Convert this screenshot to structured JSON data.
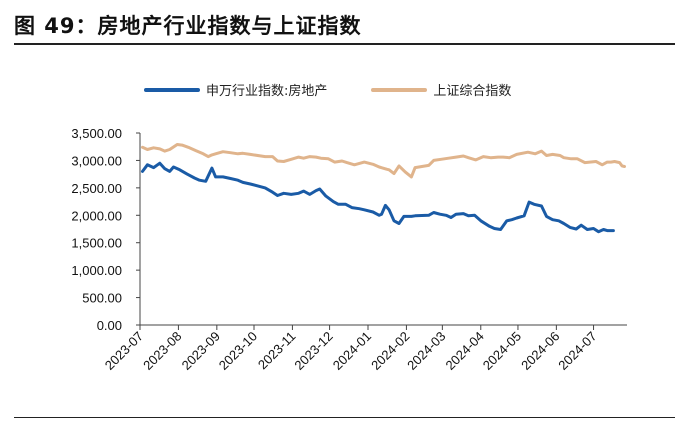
{
  "figure": {
    "title": "图 49：房地产行业指数与上证指数"
  },
  "colors": {
    "series1": "#1a5ba6",
    "series2": "#e0b48c",
    "axis": "#444444"
  },
  "chart_data": {
    "type": "line",
    "title": "",
    "xlabel": "",
    "ylabel": "",
    "ylim": [
      0,
      3500
    ],
    "y_ticks": [
      "3,500.00",
      "3,000.00",
      "2,500.00",
      "2,000.00",
      "1,500.00",
      "1,000.00",
      "500.00",
      "0.00"
    ],
    "x_ticks": [
      "2023-07",
      "2023-08",
      "2023-09",
      "2023-10",
      "2023-11",
      "2023-12",
      "2024-01",
      "2024-02",
      "2024-03",
      "2024-04",
      "2024-05",
      "2024-06",
      "2024-07"
    ],
    "legend_position": "top",
    "grid": false,
    "series": [
      {
        "name": "申万行业指数:房地产",
        "points": [
          [
            "2023-07-03",
            2800
          ],
          [
            "2023-07-07",
            2920
          ],
          [
            "2023-07-12",
            2870
          ],
          [
            "2023-07-17",
            2950
          ],
          [
            "2023-07-21",
            2850
          ],
          [
            "2023-07-25",
            2800
          ],
          [
            "2023-07-28",
            2880
          ],
          [
            "2023-08-02",
            2830
          ],
          [
            "2023-08-08",
            2750
          ],
          [
            "2023-08-14",
            2680
          ],
          [
            "2023-08-18",
            2640
          ],
          [
            "2023-08-23",
            2620
          ],
          [
            "2023-08-28",
            2860
          ],
          [
            "2023-08-31",
            2700
          ],
          [
            "2023-09-06",
            2700
          ],
          [
            "2023-09-12",
            2670
          ],
          [
            "2023-09-18",
            2640
          ],
          [
            "2023-09-22",
            2600
          ],
          [
            "2023-09-28",
            2570
          ],
          [
            "2023-10-10",
            2500
          ],
          [
            "2023-10-16",
            2420
          ],
          [
            "2023-10-20",
            2360
          ],
          [
            "2023-10-25",
            2400
          ],
          [
            "2023-10-31",
            2380
          ],
          [
            "2023-11-06",
            2400
          ],
          [
            "2023-11-10",
            2440
          ],
          [
            "2023-11-15",
            2380
          ],
          [
            "2023-11-20",
            2450
          ],
          [
            "2023-11-23",
            2480
          ],
          [
            "2023-11-28",
            2350
          ],
          [
            "2023-12-04",
            2250
          ],
          [
            "2023-12-08",
            2200
          ],
          [
            "2023-12-14",
            2200
          ],
          [
            "2023-12-19",
            2140
          ],
          [
            "2023-12-25",
            2120
          ],
          [
            "2023-12-29",
            2100
          ],
          [
            "2024-01-05",
            2060
          ],
          [
            "2024-01-10",
            2000
          ],
          [
            "2024-01-12",
            2020
          ],
          [
            "2024-01-15",
            2180
          ],
          [
            "2024-01-18",
            2100
          ],
          [
            "2024-01-22",
            1900
          ],
          [
            "2024-01-26",
            1850
          ],
          [
            "2024-01-30",
            1980
          ],
          [
            "2024-02-05",
            1980
          ],
          [
            "2024-02-08",
            1990
          ],
          [
            "2024-02-19",
            2000
          ],
          [
            "2024-02-23",
            2050
          ],
          [
            "2024-02-28",
            2020
          ],
          [
            "2024-03-04",
            2000
          ],
          [
            "2024-03-08",
            1960
          ],
          [
            "2024-03-12",
            2020
          ],
          [
            "2024-03-18",
            2030
          ],
          [
            "2024-03-22",
            1990
          ],
          [
            "2024-03-27",
            2000
          ],
          [
            "2024-04-01",
            1900
          ],
          [
            "2024-04-08",
            1800
          ],
          [
            "2024-04-12",
            1760
          ],
          [
            "2024-04-17",
            1740
          ],
          [
            "2024-04-22",
            1900
          ],
          [
            "2024-04-26",
            1920
          ],
          [
            "2024-04-30",
            1950
          ],
          [
            "2024-05-06",
            1990
          ],
          [
            "2024-05-10",
            2240
          ],
          [
            "2024-05-14",
            2200
          ],
          [
            "2024-05-20",
            2170
          ],
          [
            "2024-05-24",
            1980
          ],
          [
            "2024-05-29",
            1920
          ],
          [
            "2024-06-03",
            1900
          ],
          [
            "2024-06-07",
            1850
          ],
          [
            "2024-06-12",
            1780
          ],
          [
            "2024-06-17",
            1750
          ],
          [
            "2024-06-21",
            1820
          ],
          [
            "2024-06-26",
            1740
          ],
          [
            "2024-07-01",
            1760
          ],
          [
            "2024-07-05",
            1700
          ],
          [
            "2024-07-09",
            1740
          ],
          [
            "2024-07-12",
            1720
          ],
          [
            "2024-07-17",
            1720
          ]
        ]
      },
      {
        "name": "上证综合指数",
        "points": [
          [
            "2023-07-03",
            3240
          ],
          [
            "2023-07-07",
            3200
          ],
          [
            "2023-07-12",
            3230
          ],
          [
            "2023-07-17",
            3210
          ],
          [
            "2023-07-21",
            3170
          ],
          [
            "2023-07-25",
            3200
          ],
          [
            "2023-07-31",
            3290
          ],
          [
            "2023-08-04",
            3280
          ],
          [
            "2023-08-09",
            3240
          ],
          [
            "2023-08-15",
            3180
          ],
          [
            "2023-08-21",
            3120
          ],
          [
            "2023-08-25",
            3070
          ],
          [
            "2023-08-28",
            3100
          ],
          [
            "2023-08-31",
            3120
          ],
          [
            "2023-09-06",
            3160
          ],
          [
            "2023-09-12",
            3140
          ],
          [
            "2023-09-18",
            3120
          ],
          [
            "2023-09-22",
            3130
          ],
          [
            "2023-09-28",
            3110
          ],
          [
            "2023-10-10",
            3070
          ],
          [
            "2023-10-16",
            3070
          ],
          [
            "2023-10-20",
            2990
          ],
          [
            "2023-10-25",
            2980
          ],
          [
            "2023-10-31",
            3020
          ],
          [
            "2023-11-06",
            3060
          ],
          [
            "2023-11-10",
            3040
          ],
          [
            "2023-11-15",
            3070
          ],
          [
            "2023-11-20",
            3060
          ],
          [
            "2023-11-24",
            3040
          ],
          [
            "2023-11-30",
            3030
          ],
          [
            "2023-12-05",
            2970
          ],
          [
            "2023-12-11",
            2990
          ],
          [
            "2023-12-15",
            2960
          ],
          [
            "2023-12-21",
            2920
          ],
          [
            "2023-12-29",
            2970
          ],
          [
            "2024-01-05",
            2930
          ],
          [
            "2024-01-10",
            2880
          ],
          [
            "2024-01-16",
            2840
          ],
          [
            "2024-01-18",
            2830
          ],
          [
            "2024-01-22",
            2760
          ],
          [
            "2024-01-26",
            2900
          ],
          [
            "2024-01-31",
            2790
          ],
          [
            "2024-02-05",
            2700
          ],
          [
            "2024-02-08",
            2870
          ],
          [
            "2024-02-19",
            2910
          ],
          [
            "2024-02-23",
            3000
          ],
          [
            "2024-02-29",
            3020
          ],
          [
            "2024-03-06",
            3040
          ],
          [
            "2024-03-12",
            3060
          ],
          [
            "2024-03-18",
            3080
          ],
          [
            "2024-03-22",
            3050
          ],
          [
            "2024-03-28",
            3010
          ],
          [
            "2024-04-03",
            3070
          ],
          [
            "2024-04-09",
            3050
          ],
          [
            "2024-04-15",
            3060
          ],
          [
            "2024-04-19",
            3060
          ],
          [
            "2024-04-24",
            3050
          ],
          [
            "2024-04-30",
            3110
          ],
          [
            "2024-05-09",
            3150
          ],
          [
            "2024-05-15",
            3120
          ],
          [
            "2024-05-20",
            3170
          ],
          [
            "2024-05-24",
            3090
          ],
          [
            "2024-05-29",
            3110
          ],
          [
            "2024-06-04",
            3090
          ],
          [
            "2024-06-07",
            3050
          ],
          [
            "2024-06-13",
            3030
          ],
          [
            "2024-06-18",
            3030
          ],
          [
            "2024-06-24",
            2960
          ],
          [
            "2024-06-28",
            2970
          ],
          [
            "2024-07-03",
            2980
          ],
          [
            "2024-07-08",
            2920
          ],
          [
            "2024-07-12",
            2970
          ],
          [
            "2024-07-15",
            2970
          ],
          [
            "2024-07-18",
            2980
          ],
          [
            "2024-07-22",
            2960
          ],
          [
            "2024-07-24",
            2900
          ],
          [
            "2024-07-26",
            2890
          ]
        ]
      }
    ]
  }
}
